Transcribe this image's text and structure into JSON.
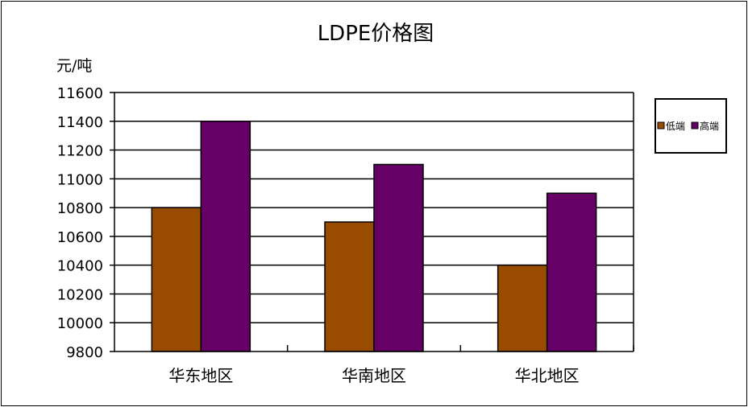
{
  "chart_data": {
    "type": "bar",
    "title": "LDPE价格图",
    "ylabel": "元/吨",
    "xlabel": "",
    "categories": [
      "华东地区",
      "华南地区",
      "华北地区"
    ],
    "series": [
      {
        "name": "低端",
        "values": [
          10800,
          10700,
          10400
        ],
        "color": "#994C00"
      },
      {
        "name": "高端",
        "values": [
          11400,
          11100,
          10900
        ],
        "color": "#660066"
      }
    ],
    "ylim": [
      9800,
      11600
    ],
    "yticks": [
      9800,
      10000,
      10200,
      10400,
      10600,
      10800,
      11000,
      11200,
      11400,
      11600
    ],
    "grid": true,
    "legend": "right"
  }
}
